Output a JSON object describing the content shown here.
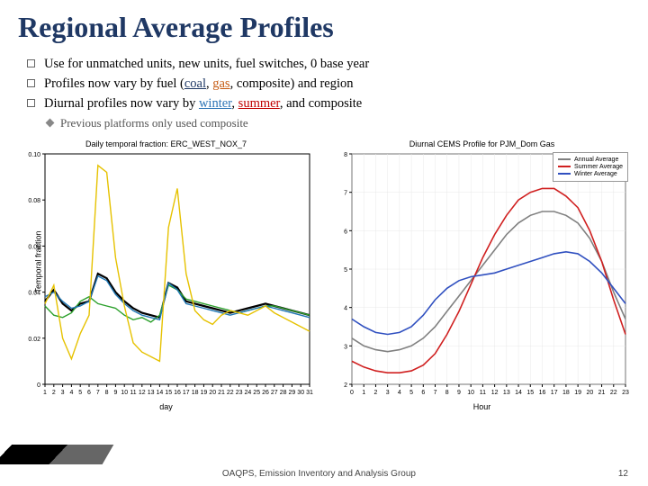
{
  "title": "Regional Average Profiles",
  "bullets": [
    {
      "prefix": "Use for unmatched units, new units, fuel switches, 0 base year",
      "highlights": []
    },
    {
      "prefix": "Profiles now vary by fuel (",
      "highlights": [
        {
          "text": "coal",
          "cls": "ul-blue"
        },
        {
          "sep": ", "
        },
        {
          "text": "gas",
          "cls": "ul-orange"
        },
        {
          "sep": ", composite) and region"
        }
      ]
    },
    {
      "prefix": "Diurnal profiles now vary by ",
      "highlights": [
        {
          "text": "winter",
          "cls": "ul-cyan"
        },
        {
          "sep": ", "
        },
        {
          "text": "summer",
          "cls": "ul-red"
        },
        {
          "sep": ", and composite"
        }
      ]
    }
  ],
  "sub_bullet": "Previous platforms only used composite",
  "chart_left": {
    "title": "Daily temporal fraction: ERC_WEST_NOX_7",
    "ylabel": "Temporal fraction",
    "xlabel": "day",
    "xlim": [
      1,
      31
    ],
    "ylim": [
      0.0,
      0.1
    ],
    "yticks": [
      0.0,
      0.02,
      0.04,
      0.06,
      0.08,
      0.1
    ],
    "xticks": [
      1,
      2,
      3,
      4,
      5,
      6,
      7,
      8,
      9,
      10,
      11,
      12,
      13,
      14,
      15,
      16,
      17,
      18,
      19,
      20,
      21,
      22,
      23,
      24,
      25,
      26,
      27,
      28,
      29,
      30,
      31
    ],
    "series": [
      {
        "color": "#000000",
        "width": 2.2,
        "y": [
          0.036,
          0.041,
          0.035,
          0.032,
          0.035,
          0.036,
          0.048,
          0.046,
          0.04,
          0.036,
          0.033,
          0.031,
          0.03,
          0.029,
          0.044,
          0.042,
          0.036,
          0.035,
          0.034,
          0.033,
          0.032,
          0.031,
          0.032,
          0.033,
          0.034,
          0.035,
          0.034,
          0.033,
          0.032,
          0.031,
          0.03
        ]
      },
      {
        "color": "#2ca02c",
        "width": 1.4,
        "y": [
          0.034,
          0.03,
          0.029,
          0.031,
          0.036,
          0.038,
          0.035,
          0.034,
          0.033,
          0.03,
          0.028,
          0.029,
          0.027,
          0.03,
          0.043,
          0.041,
          0.037,
          0.036,
          0.035,
          0.034,
          0.033,
          0.032,
          0.031,
          0.032,
          0.033,
          0.034,
          0.034,
          0.033,
          0.032,
          0.031,
          0.03
        ]
      },
      {
        "color": "#1f77b4",
        "width": 1.4,
        "y": [
          0.038,
          0.04,
          0.036,
          0.033,
          0.034,
          0.036,
          0.047,
          0.045,
          0.039,
          0.035,
          0.032,
          0.03,
          0.029,
          0.028,
          0.044,
          0.041,
          0.035,
          0.034,
          0.033,
          0.032,
          0.031,
          0.03,
          0.031,
          0.032,
          0.033,
          0.034,
          0.033,
          0.032,
          0.031,
          0.03,
          0.029
        ]
      },
      {
        "color": "#e6c200",
        "width": 1.4,
        "y": [
          0.035,
          0.043,
          0.02,
          0.011,
          0.022,
          0.03,
          0.095,
          0.092,
          0.055,
          0.034,
          0.018,
          0.014,
          0.012,
          0.01,
          0.068,
          0.085,
          0.048,
          0.032,
          0.028,
          0.026,
          0.03,
          0.032,
          0.031,
          0.03,
          0.032,
          0.034,
          0.031,
          0.029,
          0.027,
          0.025,
          0.023
        ]
      }
    ]
  },
  "chart_right": {
    "title": "Diurnal CEMS Profile for PJM_Dom Gas",
    "xlabel": "Hour",
    "xlim": [
      0,
      23
    ],
    "ylim": [
      2,
      8
    ],
    "yticks": [
      2,
      3,
      4,
      5,
      6,
      7,
      8
    ],
    "xticks": [
      0,
      1,
      2,
      3,
      4,
      5,
      6,
      7,
      8,
      9,
      10,
      11,
      12,
      13,
      14,
      15,
      16,
      17,
      18,
      19,
      20,
      21,
      22,
      23
    ],
    "grid_color": "#e8e8e8",
    "legend": [
      {
        "label": "Annual Average",
        "color": "#808080"
      },
      {
        "label": "Summer Average",
        "color": "#d02020"
      },
      {
        "label": "Winter Average",
        "color": "#3050c0"
      }
    ],
    "series": [
      {
        "color": "#808080",
        "width": 1.6,
        "y": [
          3.2,
          3.0,
          2.9,
          2.85,
          2.9,
          3.0,
          3.2,
          3.5,
          3.9,
          4.3,
          4.7,
          5.1,
          5.5,
          5.9,
          6.2,
          6.4,
          6.5,
          6.5,
          6.4,
          6.2,
          5.8,
          5.2,
          4.4,
          3.7
        ]
      },
      {
        "color": "#d02020",
        "width": 1.6,
        "y": [
          2.6,
          2.45,
          2.35,
          2.3,
          2.3,
          2.35,
          2.5,
          2.8,
          3.3,
          3.9,
          4.6,
          5.3,
          5.9,
          6.4,
          6.8,
          7.0,
          7.1,
          7.1,
          6.9,
          6.6,
          6.0,
          5.2,
          4.2,
          3.3
        ]
      },
      {
        "color": "#3050c0",
        "width": 1.6,
        "y": [
          3.7,
          3.5,
          3.35,
          3.3,
          3.35,
          3.5,
          3.8,
          4.2,
          4.5,
          4.7,
          4.8,
          4.85,
          4.9,
          5.0,
          5.1,
          5.2,
          5.3,
          5.4,
          5.45,
          5.4,
          5.2,
          4.9,
          4.5,
          4.1
        ]
      }
    ]
  },
  "footer_text": "OAQPS, Emission Inventory and Analysis Group",
  "page_number": "12"
}
